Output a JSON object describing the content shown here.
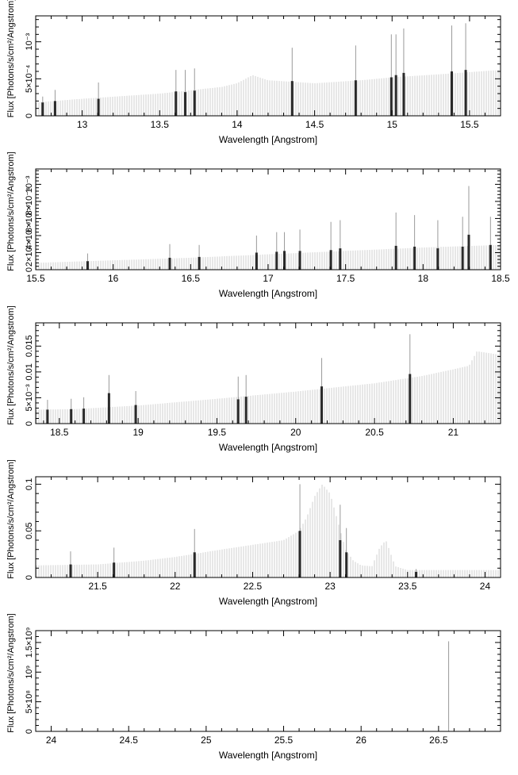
{
  "chart_data": [
    {
      "type": "bar",
      "xlabel": "Wavelength [Angstrom]",
      "ylabel": "Flux [Photons/s/cm²/Angstrom]",
      "xlim": [
        12.7,
        15.7
      ],
      "ylim": [
        0,
        0.00135
      ],
      "xticks": [
        {
          "v": 13,
          "t": "13"
        },
        {
          "v": 13.5,
          "t": "13.5"
        },
        {
          "v": 14,
          "t": "14"
        },
        {
          "v": 14.5,
          "t": "14.5"
        },
        {
          "v": 15,
          "t": "15"
        },
        {
          "v": 15.5,
          "t": "15.5"
        }
      ],
      "yticks": [
        {
          "v": 0,
          "t": "0"
        },
        {
          "v": 0.0005,
          "t": "5×10⁻⁴"
        },
        {
          "v": 0.001,
          "t": "10⁻³"
        }
      ],
      "continuum": [
        [
          12.7,
          0.00018
        ],
        [
          13.0,
          0.00023
        ],
        [
          13.5,
          0.0003
        ],
        [
          13.9,
          0.00039
        ],
        [
          14.0,
          0.00044
        ],
        [
          14.1,
          0.00055
        ],
        [
          14.2,
          0.00048
        ],
        [
          14.5,
          0.00044
        ],
        [
          14.8,
          0.00048
        ],
        [
          15.0,
          0.00052
        ],
        [
          15.3,
          0.00056
        ],
        [
          15.5,
          0.00059
        ],
        [
          15.7,
          0.00062
        ]
      ],
      "lines": [
        {
          "x": 12.74,
          "y": 0.00018,
          "top": 0.00026
        },
        {
          "x": 12.82,
          "y": 0.0002,
          "top": 0.00035
        },
        {
          "x": 13.1,
          "y": 0.00023,
          "top": 0.00045
        },
        {
          "x": 13.6,
          "y": 0.00033,
          "top": 0.00062
        },
        {
          "x": 13.66,
          "y": 0.00032,
          "top": 0.00062
        },
        {
          "x": 13.72,
          "y": 0.00034,
          "top": 0.00064
        },
        {
          "x": 14.35,
          "y": 0.00047,
          "top": 0.00092
        },
        {
          "x": 14.76,
          "y": 0.00048,
          "top": 0.00095
        },
        {
          "x": 14.99,
          "y": 0.00052,
          "top": 0.0011
        },
        {
          "x": 15.02,
          "y": 0.00055,
          "top": 0.0011
        },
        {
          "x": 15.07,
          "y": 0.00058,
          "top": 0.00118
        },
        {
          "x": 15.38,
          "y": 0.0006,
          "top": 0.00122
        },
        {
          "x": 15.47,
          "y": 0.00062,
          "top": 0.00125
        }
      ]
    },
    {
      "type": "bar",
      "xlabel": "Wavelength [Angstrom]",
      "ylabel": "Flux [Photons/s/cm²/Angstrom]",
      "xlim": [
        15.5,
        18.5
      ],
      "ylim": [
        0,
        0.00118
      ],
      "xticks": [
        {
          "v": 15.5,
          "t": "15.5"
        },
        {
          "v": 16,
          "t": "16"
        },
        {
          "v": 16.5,
          "t": "16.5"
        },
        {
          "v": 17,
          "t": "17"
        },
        {
          "v": 17.5,
          "t": "17.5"
        },
        {
          "v": 18,
          "t": "18"
        },
        {
          "v": 18.5,
          "t": "18.5"
        }
      ],
      "yticks": [
        {
          "v": 0,
          "t": "0"
        },
        {
          "v": 0.0002,
          "t": "2×10⁻⁴"
        },
        {
          "v": 0.0004,
          "t": "4×10⁻⁴"
        },
        {
          "v": 0.0006,
          "t": "6×10⁻⁴"
        },
        {
          "v": 0.0008,
          "t": "8×10⁻⁴"
        },
        {
          "v": 0.001,
          "t": "10⁻³"
        }
      ],
      "continuum": [
        [
          15.5,
          8e-05
        ],
        [
          16.0,
          0.00011
        ],
        [
          16.5,
          0.00014
        ],
        [
          17.0,
          0.00018
        ],
        [
          17.5,
          0.00022
        ],
        [
          18.0,
          0.00026
        ],
        [
          18.5,
          0.00029
        ]
      ],
      "lines": [
        {
          "x": 15.83,
          "y": 0.0001,
          "top": 0.00019
        },
        {
          "x": 16.36,
          "y": 0.00014,
          "top": 0.0003
        },
        {
          "x": 16.55,
          "y": 0.00015,
          "top": 0.00029
        },
        {
          "x": 16.92,
          "y": 0.0002,
          "top": 0.0004
        },
        {
          "x": 17.05,
          "y": 0.00021,
          "top": 0.00044
        },
        {
          "x": 17.1,
          "y": 0.00022,
          "top": 0.00044
        },
        {
          "x": 17.2,
          "y": 0.00022,
          "top": 0.00047
        },
        {
          "x": 17.4,
          "y": 0.00023,
          "top": 0.00056
        },
        {
          "x": 17.46,
          "y": 0.00025,
          "top": 0.00058
        },
        {
          "x": 17.82,
          "y": 0.00028,
          "top": 0.00067
        },
        {
          "x": 17.94,
          "y": 0.00027,
          "top": 0.00064
        },
        {
          "x": 18.09,
          "y": 0.00025,
          "top": 0.00058
        },
        {
          "x": 18.25,
          "y": 0.00027,
          "top": 0.00062
        },
        {
          "x": 18.29,
          "y": 0.00041,
          "top": 0.00098
        },
        {
          "x": 18.43,
          "y": 0.00029,
          "top": 0.00062
        }
      ]
    },
    {
      "type": "bar",
      "xlabel": "Wavelength [Angstrom]",
      "ylabel": "Flux [Photons/s/cm²/Angstrom]",
      "xlim": [
        18.35,
        21.3
      ],
      "ylim": [
        0,
        0.0195
      ],
      "xticks": [
        {
          "v": 18.5,
          "t": "18.5"
        },
        {
          "v": 19,
          "t": "19"
        },
        {
          "v": 19.5,
          "t": "19.5"
        },
        {
          "v": 20,
          "t": "20"
        },
        {
          "v": 20.5,
          "t": "20.5"
        },
        {
          "v": 21,
          "t": "21"
        }
      ],
      "yticks": [
        {
          "v": 0,
          "t": "0"
        },
        {
          "v": 0.005,
          "t": "5×10⁻³"
        },
        {
          "v": 0.01,
          "t": "0.01"
        },
        {
          "v": 0.015,
          "t": "0.015"
        }
      ],
      "continuum": [
        [
          18.35,
          0.0027
        ],
        [
          18.6,
          0.0028
        ],
        [
          19.0,
          0.0035
        ],
        [
          19.5,
          0.0048
        ],
        [
          20.0,
          0.0062
        ],
        [
          20.5,
          0.0078
        ],
        [
          20.8,
          0.0092
        ],
        [
          21.0,
          0.0105
        ],
        [
          21.1,
          0.0112
        ],
        [
          21.15,
          0.014
        ],
        [
          21.3,
          0.0133
        ]
      ],
      "lines": [
        {
          "x": 18.42,
          "y": 0.0027,
          "top": 0.0046
        },
        {
          "x": 18.57,
          "y": 0.0028,
          "top": 0.0048
        },
        {
          "x": 18.65,
          "y": 0.0029,
          "top": 0.0051
        },
        {
          "x": 18.81,
          "y": 0.0059,
          "top": 0.0094
        },
        {
          "x": 18.98,
          "y": 0.0036,
          "top": 0.0063
        },
        {
          "x": 19.63,
          "y": 0.0047,
          "top": 0.0091
        },
        {
          "x": 19.68,
          "y": 0.0052,
          "top": 0.0094
        },
        {
          "x": 20.16,
          "y": 0.0072,
          "top": 0.0127
        },
        {
          "x": 20.72,
          "y": 0.0096,
          "top": 0.0173
        }
      ]
    },
    {
      "type": "bar",
      "xlabel": "Wavelength [Angstrom]",
      "ylabel": "Flux [Photons/s/cm²/Angstrom]",
      "xlim": [
        21.1,
        24.1
      ],
      "ylim": [
        0,
        0.108
      ],
      "xticks": [
        {
          "v": 21.5,
          "t": "21.5"
        },
        {
          "v": 22,
          "t": "22"
        },
        {
          "v": 22.5,
          "t": "22.5"
        },
        {
          "v": 23,
          "t": "23"
        },
        {
          "v": 23.5,
          "t": "23.5"
        },
        {
          "v": 24,
          "t": "24"
        }
      ],
      "yticks": [
        {
          "v": 0,
          "t": "0"
        },
        {
          "v": 0.05,
          "t": "0.05"
        },
        {
          "v": 0.1,
          "t": "0.1"
        }
      ],
      "continuum": [
        [
          21.1,
          0.013
        ],
        [
          21.5,
          0.014
        ],
        [
          21.8,
          0.018
        ],
        [
          22.0,
          0.022
        ],
        [
          22.3,
          0.03
        ],
        [
          22.5,
          0.035
        ],
        [
          22.7,
          0.04
        ],
        [
          22.8,
          0.05
        ],
        [
          22.85,
          0.065
        ],
        [
          22.9,
          0.087
        ],
        [
          22.95,
          0.1
        ],
        [
          23.0,
          0.09
        ],
        [
          23.05,
          0.06
        ],
        [
          23.1,
          0.03
        ],
        [
          23.15,
          0.018
        ],
        [
          23.2,
          0.013
        ],
        [
          23.27,
          0.012
        ],
        [
          23.32,
          0.032
        ],
        [
          23.36,
          0.04
        ],
        [
          23.42,
          0.012
        ],
        [
          23.5,
          0.008
        ],
        [
          24.1,
          0.008
        ]
      ],
      "lines": [
        {
          "x": 21.32,
          "y": 0.014,
          "top": 0.028
        },
        {
          "x": 21.6,
          "y": 0.016,
          "top": 0.032
        },
        {
          "x": 22.12,
          "y": 0.027,
          "top": 0.052
        },
        {
          "x": 22.8,
          "y": 0.05,
          "top": 0.1
        },
        {
          "x": 23.06,
          "y": 0.04,
          "top": 0.078
        },
        {
          "x": 23.1,
          "y": 0.027,
          "top": 0.053
        },
        {
          "x": 23.55,
          "y": 0.006,
          "top": 0.009
        }
      ]
    },
    {
      "type": "bar",
      "xlabel": "Wavelength [Angstrom]",
      "ylabel": "Flux [Photons/s/cm²/Angstrom]",
      "xlim": [
        23.9,
        26.9
      ],
      "ylim": [
        0,
        1700000000
      ],
      "xticks": [
        {
          "v": 24,
          "t": "24"
        },
        {
          "v": 24.5,
          "t": "24.5"
        },
        {
          "v": 25,
          "t": "25"
        },
        {
          "v": 25.5,
          "t": "25.5"
        },
        {
          "v": 26,
          "t": "26"
        },
        {
          "v": 26.5,
          "t": "26.5"
        }
      ],
      "yticks": [
        {
          "v": 0,
          "t": "0"
        },
        {
          "v": 500000000,
          "t": "5×10⁸"
        },
        {
          "v": 1000000000,
          "t": "10⁹"
        },
        {
          "v": 1500000000,
          "t": "1.5×10⁹"
        }
      ],
      "continuum": [],
      "lines": [
        {
          "x": 26.56,
          "y": 0,
          "top": 1520000000
        }
      ]
    }
  ]
}
